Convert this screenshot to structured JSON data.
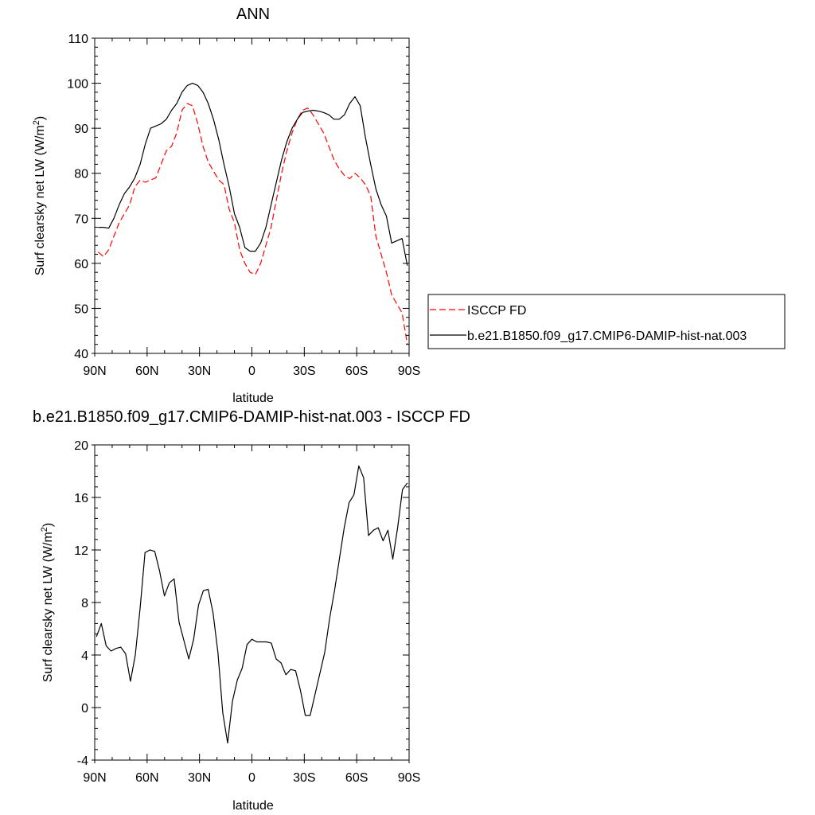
{
  "chart_data": [
    {
      "type": "line",
      "title": "ANN",
      "xlabel": "latitude",
      "ylabel": "Surf clearsky net LW (W/m",
      "ylabel_sup": "2",
      "ylabel_end": ")",
      "xlim": [
        -90,
        90
      ],
      "ylim": [
        40,
        110
      ],
      "yticks": [
        40,
        50,
        60,
        70,
        80,
        90,
        100,
        110
      ],
      "xticks": [
        -90,
        -60,
        -30,
        0,
        30,
        60,
        90
      ],
      "xtick_labels": [
        "90N",
        "60N",
        "30N",
        "0",
        "30S",
        "60S",
        "90S"
      ],
      "legend_position": "right",
      "x": [
        -88,
        -85,
        -82,
        -79,
        -76,
        -73,
        -70,
        -67,
        -64,
        -61,
        -58,
        -55,
        -52,
        -49,
        -46,
        -43,
        -40,
        -37,
        -34,
        -31,
        -28,
        -25,
        -22,
        -19,
        -16,
        -13,
        -10,
        -7,
        -4,
        -1,
        2,
        5,
        8,
        11,
        14,
        17,
        20,
        23,
        26,
        29,
        32,
        35,
        38,
        41,
        44,
        47,
        50,
        53,
        56,
        59,
        62,
        65,
        68,
        71,
        74,
        77,
        80,
        83,
        86,
        89
      ],
      "series": [
        {
          "name": "ISCCP FD",
          "color": "#ff0000",
          "dash": true,
          "values": [
            62.5,
            61.5,
            63,
            66,
            69,
            71,
            73,
            77,
            78.5,
            78,
            78.5,
            79,
            82,
            85,
            86,
            89,
            94,
            95.5,
            95,
            91,
            86,
            82.5,
            80.5,
            78.5,
            77.5,
            72,
            69,
            63,
            60,
            58,
            57.5,
            60,
            64,
            68,
            74,
            80,
            85,
            89,
            92,
            94,
            94.5,
            93,
            91,
            89,
            86,
            83,
            81,
            79.5,
            78.8,
            80,
            79,
            77.5,
            75,
            66,
            62,
            58,
            53,
            51,
            49,
            42
          ]
        },
        {
          "name": "b.e21.B1850.f09_g17.CMIP6-DAMIP-hist-nat.003",
          "color": "#000000",
          "dash": false,
          "values": [
            68,
            68,
            67.8,
            70,
            73,
            75.5,
            77,
            79,
            82,
            86.5,
            90,
            90.5,
            91,
            92,
            94,
            95.5,
            98,
            99.5,
            100,
            99.5,
            98,
            95.5,
            92,
            87.5,
            82,
            77,
            71,
            68,
            63.5,
            62.7,
            62.7,
            64.5,
            68,
            73,
            78,
            83,
            87,
            90,
            92,
            93.5,
            93.8,
            94,
            93.8,
            93.5,
            93,
            92,
            92,
            93,
            95.5,
            97,
            95,
            88,
            82,
            76.5,
            73,
            70.5,
            64.5,
            65,
            65.5,
            59.5
          ]
        }
      ]
    },
    {
      "type": "line",
      "title": "b.e21.B1850.f09_g17.CMIP6-DAMIP-hist-nat.003 - ISCCP FD",
      "xlabel": "latitude",
      "ylabel": "Surf clearsky net LW (W/m",
      "ylabel_sup": "2",
      "ylabel_end": ")",
      "xlim": [
        -90,
        90
      ],
      "ylim": [
        -4,
        20
      ],
      "yticks": [
        -4,
        0,
        4,
        8,
        12,
        16,
        20
      ],
      "xticks": [
        -90,
        -60,
        -30,
        0,
        30,
        60,
        90
      ],
      "xtick_labels": [
        "90N",
        "60N",
        "30N",
        "0",
        "30S",
        "60S",
        "90S"
      ],
      "series": [
        {
          "name": "",
          "color": "#000000",
          "dash": false,
          "values": [
            5.4,
            6.4,
            4.7,
            4.3,
            4.5,
            4.6,
            4.1,
            2.0,
            4.0,
            7.6,
            11.8,
            12.0,
            11.9,
            10.4,
            8.5,
            9.5,
            9.8,
            6.5,
            5.1,
            3.7,
            5.2,
            7.8,
            8.9,
            9.0,
            7.2,
            4.2,
            -0.4,
            -2.7,
            0.5,
            2.1,
            3.0,
            4.8,
            5.2,
            5.0,
            5.0,
            5.0,
            4.9,
            3.7,
            3.4,
            2.5,
            2.9,
            2.8,
            1.3,
            -0.6,
            -0.6,
            1.0,
            2.6,
            4.2,
            6.8,
            8.9,
            11.3,
            13.7,
            15.6,
            16.2,
            18.4,
            17.5,
            13.1,
            13.5,
            13.7,
            12.7,
            13.5,
            11.3,
            13.7,
            16.6,
            17.1
          ]
        }
      ]
    }
  ]
}
